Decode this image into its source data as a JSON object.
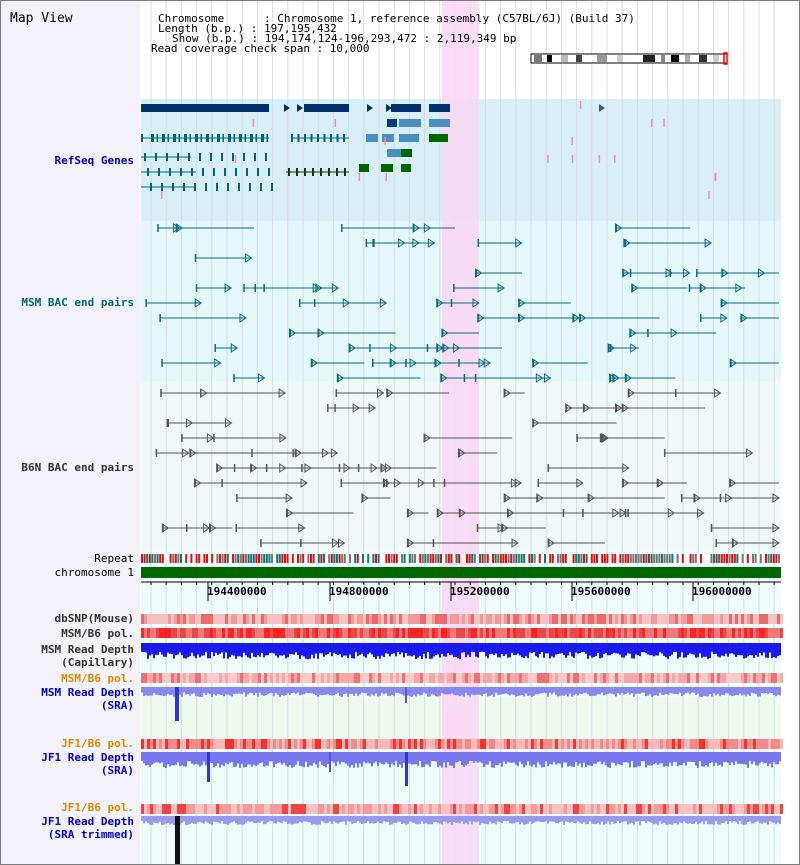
{
  "title": "Map View",
  "header": {
    "chromosome": "Chromosome      : Chromosome 1, reference assembly (C57BL/6J) (Build 37)",
    "length": "Length (b.p.) : 197,195,432",
    "show": "Show (b.p.) : 194,174,124-196,293,472 : 2,119,349 bp",
    "span": "Read coverage check span : 10,000"
  },
  "tracks": {
    "refseq": "RefSeq Genes",
    "msm_bac": "MSM BAC end pairs",
    "b6n_bac": "B6N BAC end pairs",
    "repeat": "Repeat",
    "chromosome": "chromosome 1",
    "dbsnp": "dbSNP(Mouse)",
    "msm_pol": "MSM/B6 pol.",
    "msm_cap_1": "MSM Read Depth",
    "msm_cap_2": "(Capillary)",
    "msm_pol2": "MSM/B6 pol.",
    "msm_sra_1": "MSM Read Depth",
    "msm_sra_2": "(SRA)",
    "jf1_pol": "JF1/B6 pol.",
    "jf1_sra_1": "JF1 Read Depth",
    "jf1_sra_2": "(SRA)",
    "jf1_pol2": "JF1/B6 pol.",
    "jf1_trim_1": "JF1 Read Depth",
    "jf1_trim_2": "(SRA trimmed)"
  },
  "axis": {
    "ticks": [
      "194400000",
      "194800000",
      "195200000",
      "195600000",
      "196000000"
    ]
  },
  "colors": {
    "refseq_label": "#0000aa",
    "msm_label": "#006677",
    "b6n_label": "#333333",
    "orange_label": "#dd8800",
    "blue_label": "#0000cc",
    "highlight": "#f9d8f4"
  }
}
